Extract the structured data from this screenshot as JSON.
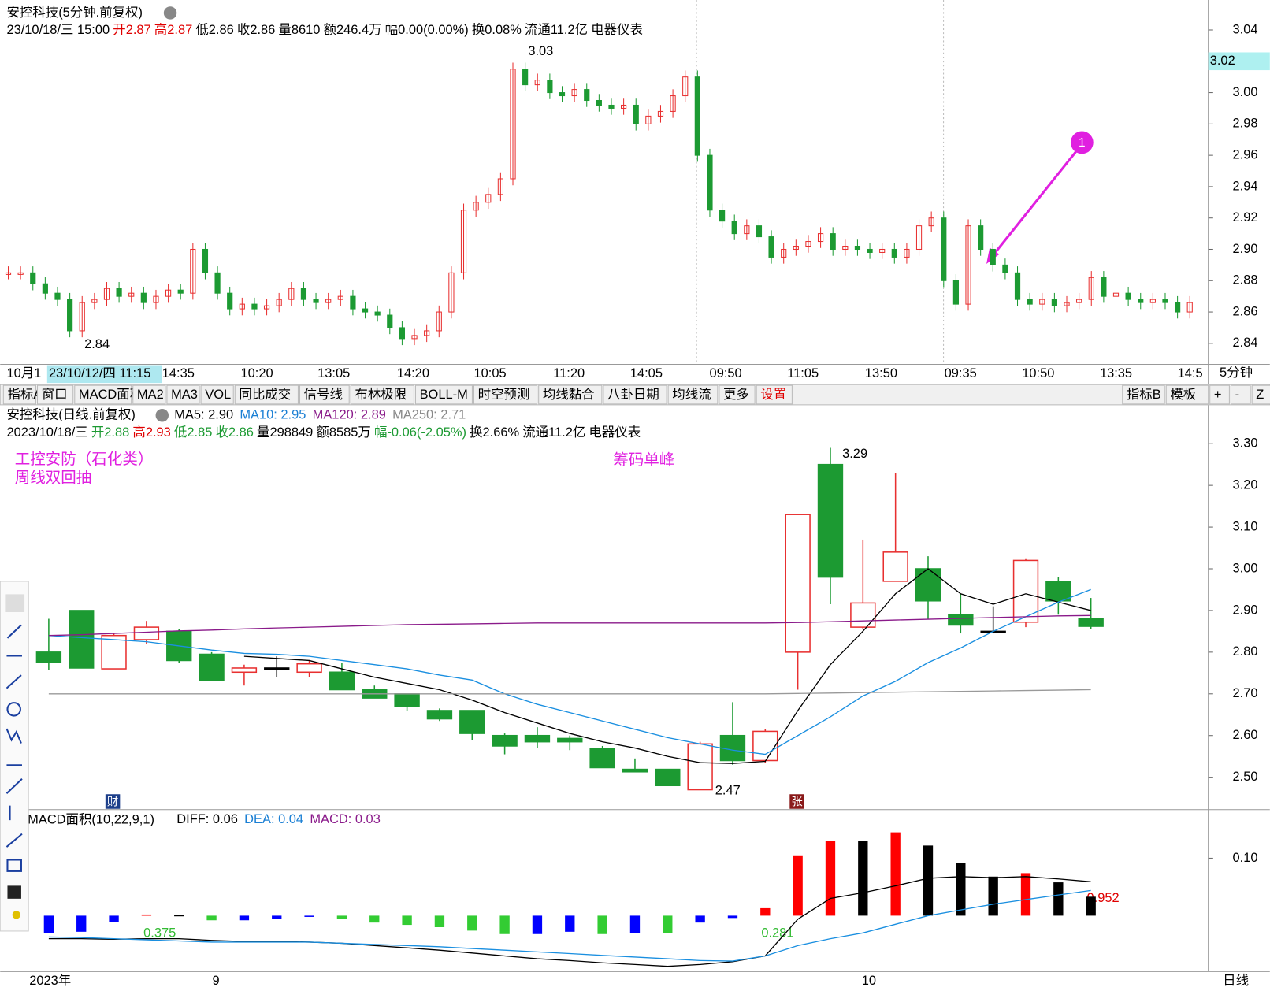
{
  "intraday": {
    "title": "安控科技(5分钟.前复权)",
    "fields": [
      {
        "text": "23/10/18/三 15:00",
        "color": "#000"
      },
      {
        "text": "开2.87",
        "color": "#e00000"
      },
      {
        "text": "高2.87",
        "color": "#e00000"
      },
      {
        "text": "低2.86",
        "color": "#000"
      },
      {
        "text": "收2.86",
        "color": "#000"
      },
      {
        "text": "量8610",
        "color": "#000"
      },
      {
        "text": "额246.4万",
        "color": "#000"
      },
      {
        "text": "幅0.00(0.00%)",
        "color": "#000"
      },
      {
        "text": "换0.08%",
        "color": "#000"
      },
      {
        "text": "流通11.2亿",
        "color": "#000"
      },
      {
        "text": "电器仪表",
        "color": "#000"
      }
    ],
    "ylim": [
      2.8266,
      3.0591
    ],
    "yticks": [
      {
        "value": 2.84,
        "label": "2.84"
      },
      {
        "value": 2.86,
        "label": "2.86"
      },
      {
        "value": 2.88,
        "label": "2.88"
      },
      {
        "value": 2.9,
        "label": "2.90"
      },
      {
        "value": 2.92,
        "label": "2.92"
      },
      {
        "value": 2.94,
        "label": "2.94"
      },
      {
        "value": 2.96,
        "label": "2.96"
      },
      {
        "value": 2.98,
        "label": "2.98"
      },
      {
        "value": 3,
        "label": "3.00"
      },
      {
        "value": 3.04,
        "label": "3.04"
      }
    ],
    "current_price": {
      "value": 3.02,
      "label": "3.02"
    },
    "values": [
      2.885,
      2.885,
      2.878,
      2.872,
      2.868,
      2.848,
      2.866,
      2.868,
      2.875,
      2.87,
      2.872,
      2.866,
      2.87,
      2.874,
      2.872,
      2.9,
      2.885,
      2.872,
      2.862,
      2.865,
      2.862,
      2.864,
      2.868,
      2.875,
      2.868,
      2.866,
      2.868,
      2.87,
      2.862,
      2.86,
      2.858,
      2.85,
      2.843,
      2.845,
      2.848,
      2.86,
      2.885,
      2.925,
      2.93,
      2.935,
      2.945,
      3.015,
      3.005,
      3.008,
      3.0,
      2.998,
      3.002,
      2.995,
      2.992,
      2.99,
      2.992,
      2.98,
      2.985,
      2.988,
      2.998,
      3.01,
      2.96,
      2.925,
      2.918,
      2.91,
      2.915,
      2.908,
      2.895,
      2.9,
      2.902,
      2.905,
      2.91,
      2.9,
      2.902,
      2.9,
      2.898,
      2.9,
      2.895,
      2.9,
      2.915,
      2.92,
      2.88,
      2.865,
      2.915,
      2.9,
      2.89,
      2.885,
      2.868,
      2.865,
      2.868,
      2.864,
      2.866,
      2.868,
      2.882,
      2.87,
      2.872,
      2.868,
      2.866,
      2.868,
      2.866,
      2.86,
      2.866
    ],
    "up_color": "#e83030",
    "down_color": "#1c9a32",
    "annotations": [
      "3.03",
      "2.84"
    ],
    "time_labels": [
      "10月1",
      "23/10/12/四 11:15",
      "14:35",
      "10:20",
      "13:05",
      "14:20",
      "10:05",
      "11:20",
      "14:05",
      "09:50",
      "11:05",
      "13:50",
      "09:35",
      "10:50",
      "13:35",
      "14:5"
    ],
    "period": "5分钟",
    "marker": "1"
  },
  "toolbar": {
    "left": [
      "指标A",
      "窗口",
      "MACD面积",
      "MA2",
      "MA3",
      "VOL",
      "同比成交",
      "信号线",
      "布林极限",
      "BOLL-M",
      "时空预测",
      "均线黏合",
      "八卦日期",
      "均线流",
      "更多",
      "设置"
    ],
    "right": [
      "指标B",
      "模板",
      "+",
      "-",
      "Z"
    ]
  },
  "daily": {
    "title": "安控科技(日线.前复权)",
    "ma_labels": [
      {
        "text": "MA5: 2.90",
        "color": "#000"
      },
      {
        "text": "MA10: 2.95",
        "color": "#1a7fd4"
      },
      {
        "text": "MA120: 2.89",
        "color": "#8a1a8a"
      },
      {
        "text": "MA250: 2.71",
        "color": "#888"
      }
    ],
    "fields": [
      {
        "text": "2023/10/18/三",
        "color": "#000"
      },
      {
        "text": "开2.88",
        "color": "#1c9a32"
      },
      {
        "text": "高2.93",
        "color": "#e00000"
      },
      {
        "text": "低2.85",
        "color": "#1c9a32"
      },
      {
        "text": "收2.86",
        "color": "#1c9a32"
      },
      {
        "text": "量298849",
        "color": "#000"
      },
      {
        "text": "额8585万",
        "color": "#000"
      },
      {
        "text": "幅-0.06(-2.05%)",
        "color": "#1c9a32"
      },
      {
        "text": "换2.66%",
        "color": "#000"
      },
      {
        "text": "流通11.2亿",
        "color": "#000"
      },
      {
        "text": "电器仪表",
        "color": "#000"
      }
    ],
    "notes": [
      "工控安防（石化类）",
      "周线双回抽",
      "筹码单峰"
    ],
    "badges": [
      "财",
      "张"
    ],
    "annotations": [
      "3.29",
      "2.47"
    ],
    "ylim": [
      2.4223,
      3.3932
    ],
    "yticks": [
      {
        "value": 2.5,
        "label": "2.50"
      },
      {
        "value": 2.6,
        "label": "2.60"
      },
      {
        "value": 2.7,
        "label": "2.70"
      },
      {
        "value": 2.8,
        "label": "2.80"
      },
      {
        "value": 2.9,
        "label": "2.90"
      },
      {
        "value": 3,
        "label": "3.00"
      },
      {
        "value": 3.1,
        "label": "3.10"
      },
      {
        "value": 3.2,
        "label": "3.20"
      },
      {
        "value": 3.3,
        "label": "3.30"
      }
    ],
    "open": [
      2.8,
      2.9,
      2.76,
      2.83,
      2.85,
      2.795,
      2.752,
      2.762,
      2.752,
      2.752,
      2.71,
      2.7,
      2.66,
      2.66,
      2.6,
      2.6,
      2.593,
      2.568,
      2.519,
      2.519,
      2.47,
      2.6,
      2.54,
      2.8,
      3.25,
      2.86,
      2.97,
      3.0,
      2.89,
      2.85,
      2.872,
      2.97,
      2.88
    ],
    "high": [
      2.88,
      2.9,
      2.845,
      2.875,
      2.855,
      2.8,
      2.77,
      2.79,
      2.78,
      2.775,
      2.72,
      2.7,
      2.665,
      2.66,
      2.605,
      2.62,
      2.6,
      2.575,
      2.545,
      2.52,
      2.585,
      2.68,
      2.615,
      3.13,
      3.29,
      3.07,
      3.23,
      3.03,
      2.94,
      2.91,
      3.025,
      2.98,
      2.93
    ],
    "low": [
      2.757,
      2.762,
      2.76,
      2.82,
      2.775,
      2.733,
      2.72,
      2.74,
      2.74,
      2.71,
      2.69,
      2.66,
      2.635,
      2.59,
      2.555,
      2.57,
      2.565,
      2.523,
      2.513,
      2.48,
      2.47,
      2.53,
      2.535,
      2.71,
      2.915,
      2.855,
      2.97,
      2.88,
      2.845,
      2.845,
      2.86,
      2.89,
      2.855
    ],
    "close": [
      2.775,
      2.762,
      2.84,
      2.86,
      2.78,
      2.733,
      2.762,
      2.762,
      2.772,
      2.71,
      2.69,
      2.67,
      2.64,
      2.605,
      2.575,
      2.585,
      2.585,
      2.523,
      2.513,
      2.48,
      2.58,
      2.54,
      2.61,
      3.13,
      2.98,
      2.918,
      3.04,
      2.923,
      2.865,
      2.85,
      3.02,
      2.923,
      2.862
    ],
    "up_color": "#e83030",
    "down_color": "#1c9a32",
    "flat_color": "#000",
    "ma": [
      {
        "color": "#000",
        "values": [
          null,
          null,
          null,
          null,
          null,
          null,
          2.79,
          2.785,
          2.78,
          2.76,
          2.74,
          2.725,
          2.71,
          2.685,
          2.655,
          2.63,
          2.605,
          2.585,
          2.57,
          2.55,
          2.535,
          2.533,
          2.538,
          2.66,
          2.77,
          2.85,
          2.94,
          3.0,
          2.94,
          2.915,
          2.94,
          2.92,
          2.9
        ]
      },
      {
        "color": "#1a8fe0",
        "values": [
          2.84,
          2.835,
          2.83,
          2.825,
          2.815,
          2.805,
          2.797,
          2.795,
          2.79,
          2.78,
          2.77,
          2.76,
          2.745,
          2.733,
          2.7,
          2.675,
          2.655,
          2.635,
          2.615,
          2.595,
          2.58,
          2.565,
          2.555,
          2.6,
          2.645,
          2.695,
          2.73,
          2.775,
          2.81,
          2.85,
          2.885,
          2.92,
          2.95
        ]
      },
      {
        "color": "#8a1a8a",
        "values": [
          2.84,
          2.842,
          2.845,
          2.848,
          2.851,
          2.853,
          2.856,
          2.858,
          2.86,
          2.862,
          2.864,
          2.866,
          2.867,
          2.868,
          2.869,
          2.87,
          2.87,
          2.87,
          2.87,
          2.87,
          2.87,
          2.87,
          2.87,
          2.871,
          2.873,
          2.875,
          2.877,
          2.879,
          2.881,
          2.883,
          2.885,
          2.887,
          2.888
        ]
      },
      {
        "color": "#999",
        "values": [
          2.7,
          2.7,
          2.7,
          2.7,
          2.7,
          2.7,
          2.7,
          2.7,
          2.7,
          2.7,
          2.7,
          2.7,
          2.7,
          2.7,
          2.7,
          2.7,
          2.7,
          2.7,
          2.7,
          2.7,
          2.7,
          2.7,
          2.7,
          2.701,
          2.702,
          2.703,
          2.704,
          2.705,
          2.706,
          2.707,
          2.708,
          2.709,
          2.71
        ]
      }
    ]
  },
  "macd": {
    "title": "MACD面积(10,22,9,1)",
    "labels": [
      {
        "text": "DIFF: 0.06",
        "color": "#000"
      },
      {
        "text": "DEA: 0.04",
        "color": "#1a7fd4"
      },
      {
        "text": "MACD: 0.03",
        "color": "#8a1a8a"
      }
    ],
    "ylim": [
      -0.0972,
      0.1845
    ],
    "yticks": [
      {
        "value": 0.1,
        "label": "0.10"
      }
    ],
    "values": [
      -0.03,
      -0.028,
      -0.011,
      0.002,
      0.001,
      -0.008,
      -0.008,
      -0.006,
      -0.002,
      -0.006,
      -0.012,
      -0.016,
      -0.02,
      -0.026,
      -0.032,
      -0.032,
      -0.028,
      -0.032,
      -0.03,
      -0.03,
      -0.012,
      -0.004,
      0.013,
      0.105,
      0.13,
      0.13,
      0.145,
      0.122,
      0.092,
      0.068,
      0.074,
      0.058,
      0.033
    ],
    "colors": [
      "#0000ff",
      "#0000ff",
      "#0000ff",
      "#ff0000",
      "#000",
      "#33cc33",
      "#0000ff",
      "#0000ff",
      "#0000ff",
      "#33cc33",
      "#33cc33",
      "#33cc33",
      "#33cc33",
      "#33cc33",
      "#33cc33",
      "#0000ff",
      "#0000ff",
      "#33cc33",
      "#0000ff",
      "#33cc33",
      "#0000ff",
      "#0000ff",
      "#ff0000",
      "#ff0000",
      "#ff0000",
      "#000",
      "#ff0000",
      "#000",
      "#000",
      "#000",
      "#ff0000",
      "#000",
      "#000"
    ],
    "diff": [
      -0.04,
      -0.04,
      -0.041,
      -0.04,
      -0.04,
      -0.043,
      -0.045,
      -0.045,
      -0.046,
      -0.048,
      -0.052,
      -0.056,
      -0.06,
      -0.065,
      -0.07,
      -0.075,
      -0.078,
      -0.082,
      -0.085,
      -0.088,
      -0.085,
      -0.08,
      -0.07,
      -0.006,
      0.03,
      0.04,
      0.052,
      0.065,
      0.068,
      0.066,
      0.068,
      0.064,
      0.059
    ],
    "dea": [
      -0.037,
      -0.038,
      -0.04,
      -0.042,
      -0.044,
      -0.046,
      -0.046,
      -0.046,
      -0.046,
      -0.048,
      -0.05,
      -0.052,
      -0.054,
      -0.057,
      -0.06,
      -0.063,
      -0.066,
      -0.069,
      -0.072,
      -0.075,
      -0.078,
      -0.079,
      -0.07,
      -0.052,
      -0.04,
      -0.03,
      -0.015,
      0.0,
      0.01,
      0.02,
      0.028,
      0.036,
      0.044
    ],
    "diff_color": "#000",
    "dea_color": "#1a8fe0",
    "annotations": [
      "0.375",
      "0.281",
      "0.952"
    ]
  },
  "bottom_axis": {
    "labels": [
      "2023年",
      "9",
      "10"
    ],
    "period": "日线"
  }
}
